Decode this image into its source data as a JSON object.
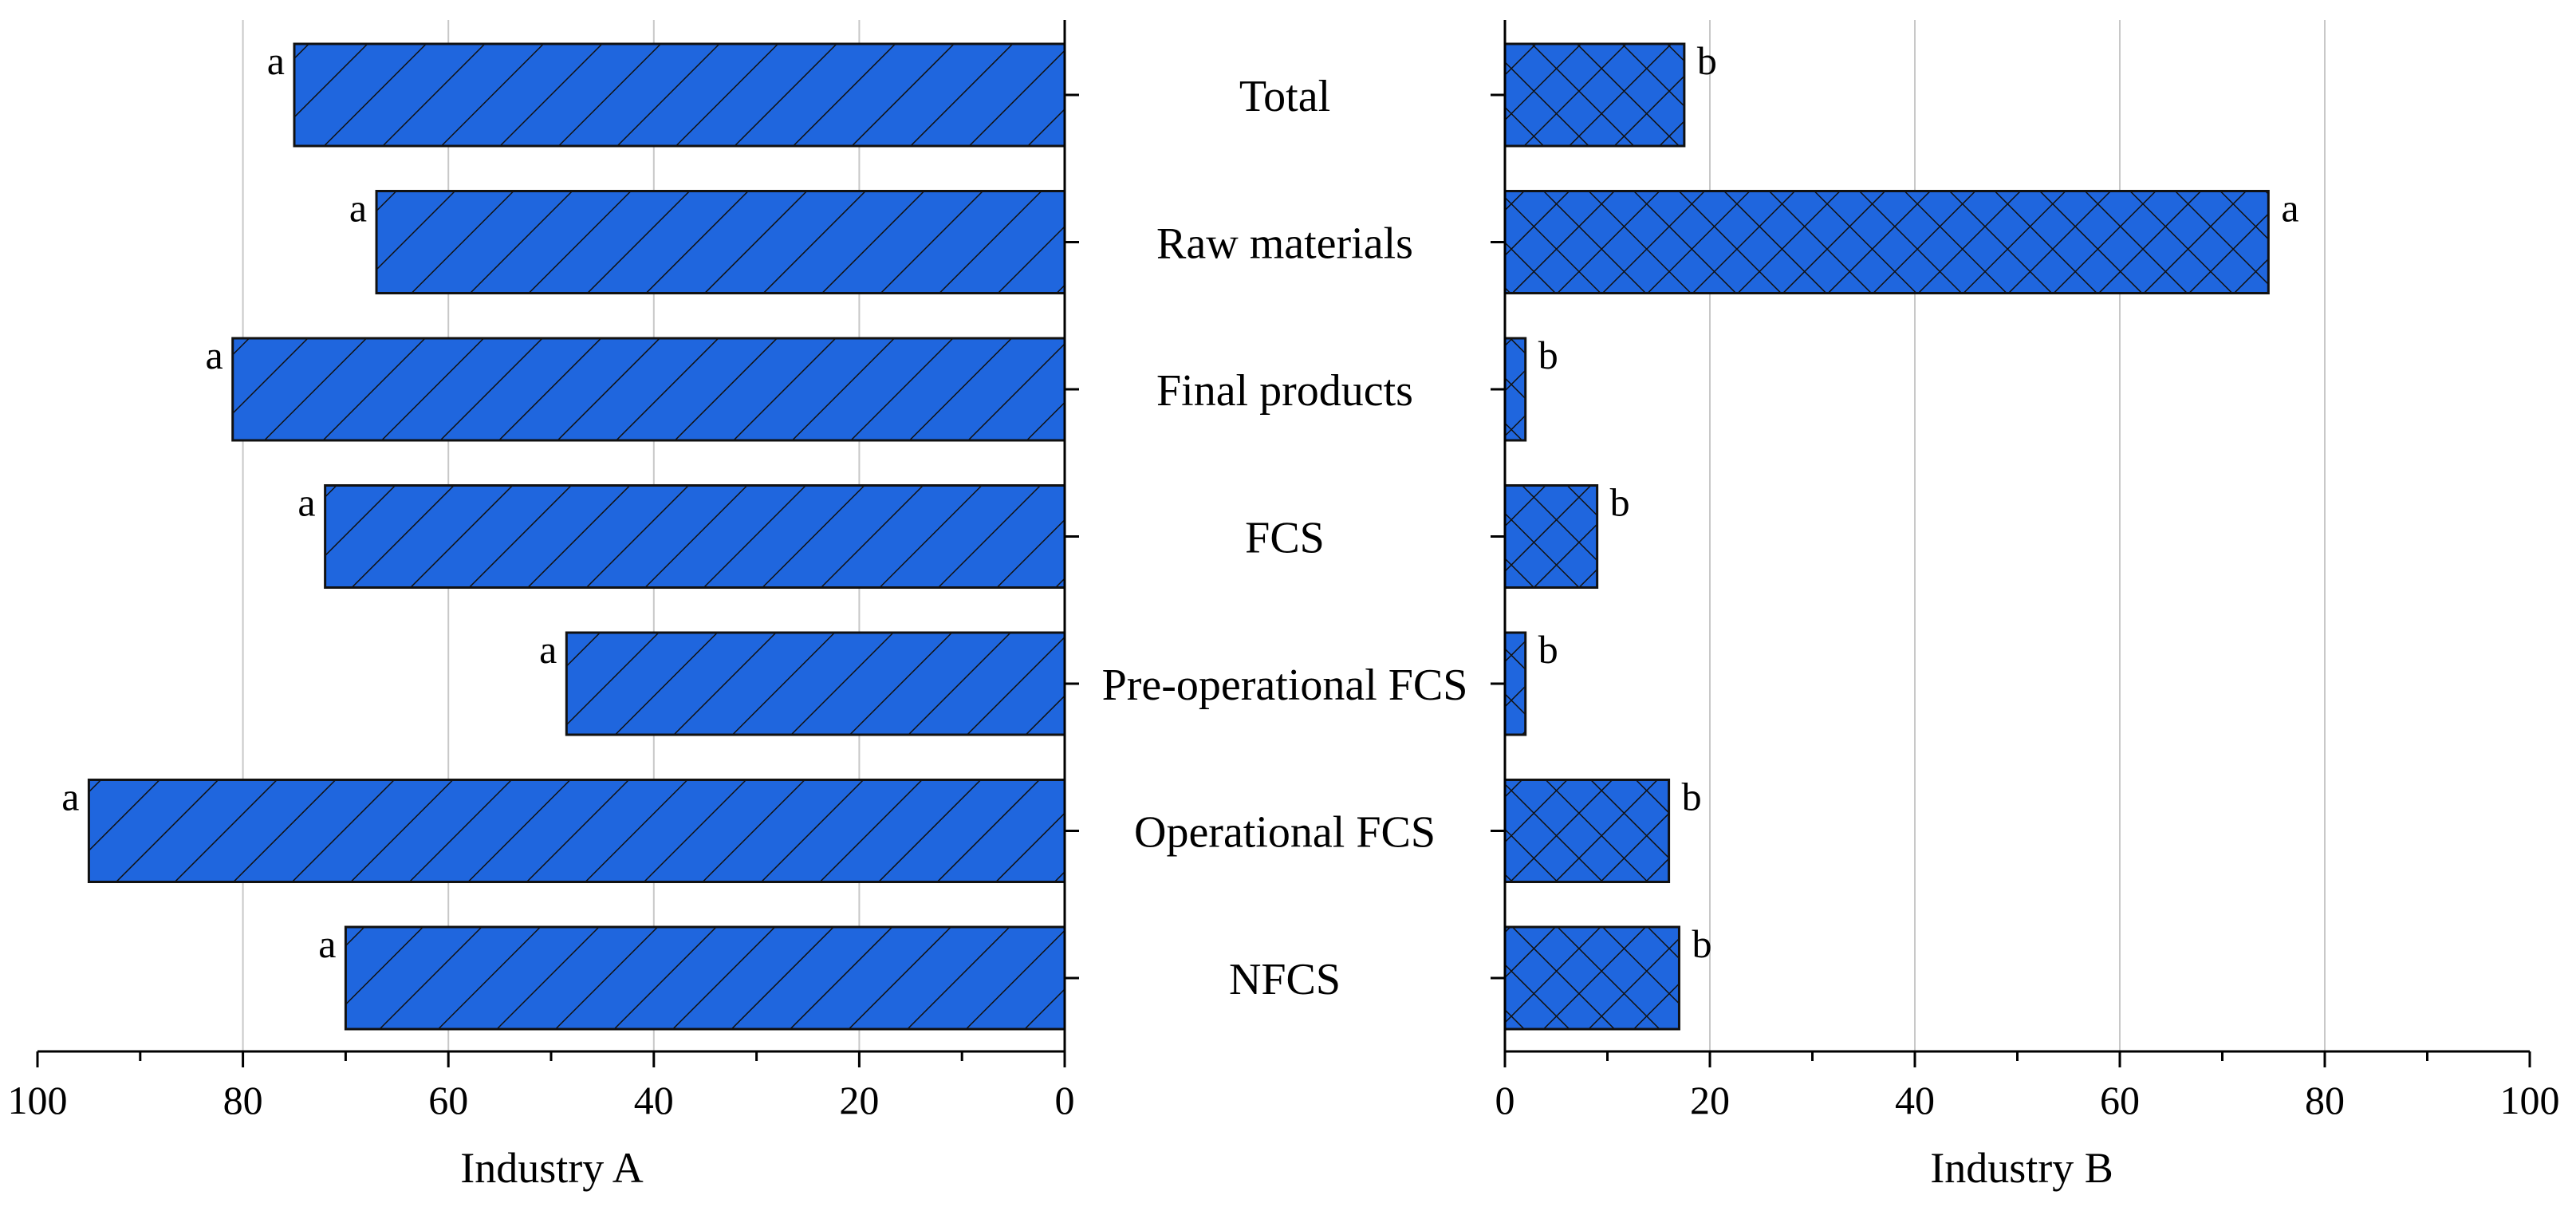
{
  "colors": {
    "bar_fill": "#1f66de",
    "bar_stroke": "#111111",
    "grid": "#c8c8c8",
    "axis": "#000000"
  },
  "chart_data": {
    "type": "bar",
    "orientation": "horizontal",
    "layout": "back-to-back",
    "categories": [
      "Total",
      "Raw materials",
      "Final products",
      "FCS",
      "Pre-operational FCS",
      "Operational FCS",
      "NFCS"
    ],
    "series": [
      {
        "name": "Industry A",
        "panel": "left",
        "direction": "reversed",
        "pattern": "diagonal-hatch",
        "xlabel": "Industry A",
        "xlim": [
          0,
          100
        ],
        "ticks": [
          "100",
          "80",
          "60",
          "40",
          "20",
          "0"
        ],
        "values": [
          75,
          67,
          81,
          72,
          48.5,
          95,
          70
        ],
        "significance": [
          "a",
          "a",
          "a",
          "a",
          "a",
          "a",
          "a"
        ]
      },
      {
        "name": "Industry B",
        "panel": "right",
        "direction": "normal",
        "pattern": "cross-hatch",
        "xlabel": "Industry B",
        "xlim": [
          0,
          100
        ],
        "ticks": [
          "0",
          "20",
          "40",
          "60",
          "80",
          "100"
        ],
        "values": [
          17.5,
          74.5,
          2,
          9,
          2,
          16,
          17
        ],
        "significance": [
          "b",
          "a",
          "b",
          "b",
          "b",
          "b",
          "b"
        ]
      }
    ],
    "grid": "vertical",
    "legend": "none"
  }
}
